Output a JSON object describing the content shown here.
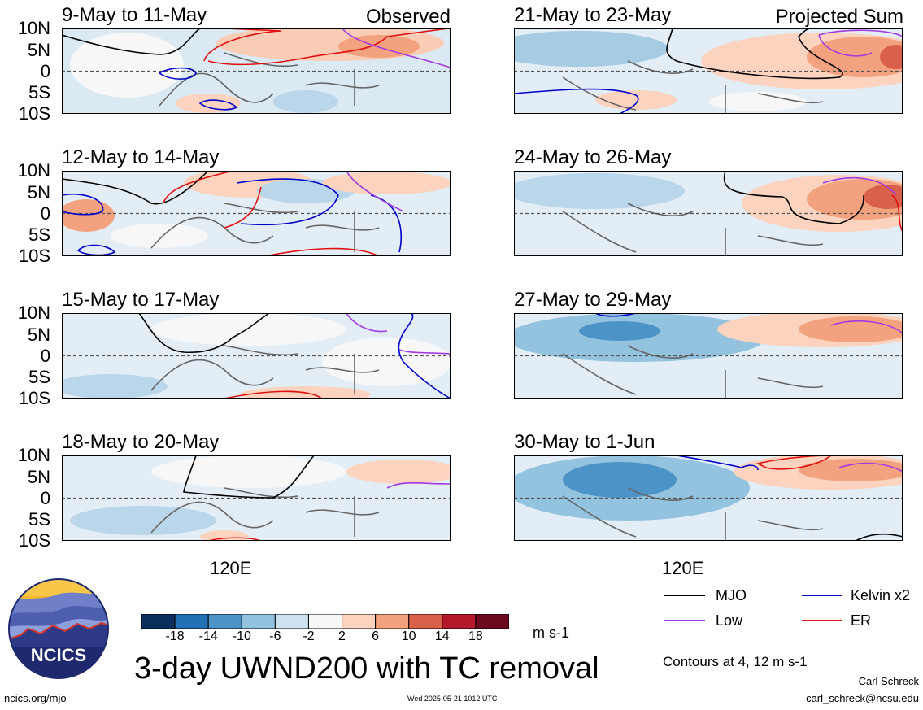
{
  "chart_data": {
    "type": "heatmap",
    "title": "3-day UWND200 with TC removal",
    "units": "m s-1",
    "latitude_ticks": [
      "10N",
      "5N",
      "0",
      "5S",
      "10S"
    ],
    "longitude_tick": "120E",
    "columns": [
      {
        "tag": "Observed",
        "panels": [
          "9-May to 11-May",
          "12-May to 14-May",
          "15-May to 17-May",
          "18-May to 20-May"
        ]
      },
      {
        "tag": "Projected Sum",
        "panels": [
          "21-May to 23-May",
          "24-May to 26-May",
          "27-May to 29-May",
          "30-May to 1-Jun"
        ]
      }
    ],
    "colorbar": {
      "ticks": [
        "-18",
        "-14",
        "-10",
        "-6",
        "-2",
        "2",
        "6",
        "10",
        "14",
        "18"
      ],
      "colors": [
        "#0a2f5c",
        "#2470b4",
        "#4c94c8",
        "#93c3df",
        "#cde2f0",
        "#f7f7f7",
        "#fbd3bf",
        "#f3a27f",
        "#d9604a",
        "#b3182b",
        "#6b0a1e"
      ]
    },
    "contour_legend": [
      {
        "name": "MJO",
        "color": "#000000"
      },
      {
        "name": "Kelvin x2",
        "color": "#0000cc"
      },
      {
        "name": "Low",
        "color": "#a23be0"
      },
      {
        "name": "ER",
        "color": "#e01010"
      }
    ],
    "contour_note": "Contours at 4, 12 m s-1"
  },
  "footer": {
    "logo_text": "NCICS",
    "url": "ncics.org/mjo",
    "timestamp": "Wed 2025-05-21 1012 UTC",
    "author": "Carl Schreck",
    "email": "carl_schreck@ncsu.edu"
  }
}
